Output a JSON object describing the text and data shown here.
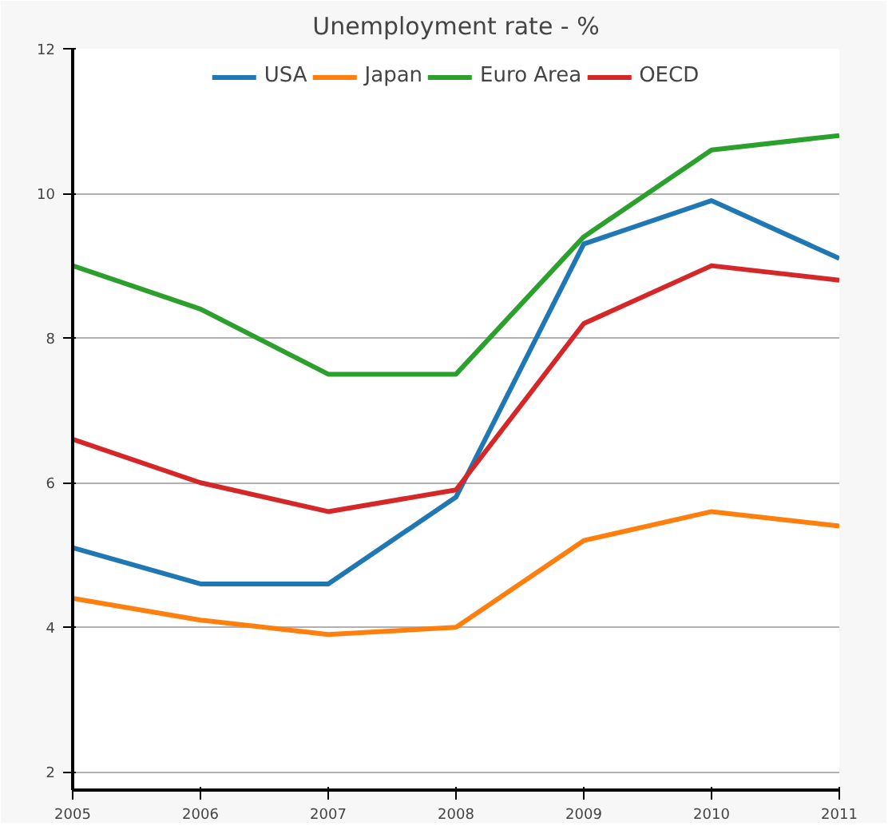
{
  "chart_data": {
    "type": "line",
    "title": "Unemployment rate - %",
    "x": [
      2005,
      2006,
      2007,
      2008,
      2009,
      2010,
      2011
    ],
    "series": [
      {
        "name": "USA",
        "color": "#1f77b4",
        "values": [
          5.1,
          4.6,
          4.6,
          5.8,
          9.3,
          9.9,
          9.1
        ]
      },
      {
        "name": "Japan",
        "color": "#ff7f0e",
        "values": [
          4.4,
          4.1,
          3.9,
          4.0,
          5.2,
          5.6,
          5.4
        ]
      },
      {
        "name": "Euro Area",
        "color": "#2ca02c",
        "values": [
          9.0,
          8.4,
          7.5,
          7.5,
          9.4,
          10.6,
          10.8
        ]
      },
      {
        "name": "OECD",
        "color": "#d62728",
        "values": [
          6.6,
          6.0,
          5.6,
          5.9,
          8.2,
          9.0,
          8.8
        ]
      }
    ],
    "xlim": [
      2005,
      2011
    ],
    "xticks": [
      2005,
      2006,
      2007,
      2008,
      2009,
      2010,
      2011
    ],
    "ylim": [
      1.75,
      12
    ],
    "yticks": [
      2,
      4,
      6,
      8,
      10,
      12
    ],
    "grid": "y",
    "legend": "top",
    "marker": "none",
    "line_style": "solid"
  }
}
